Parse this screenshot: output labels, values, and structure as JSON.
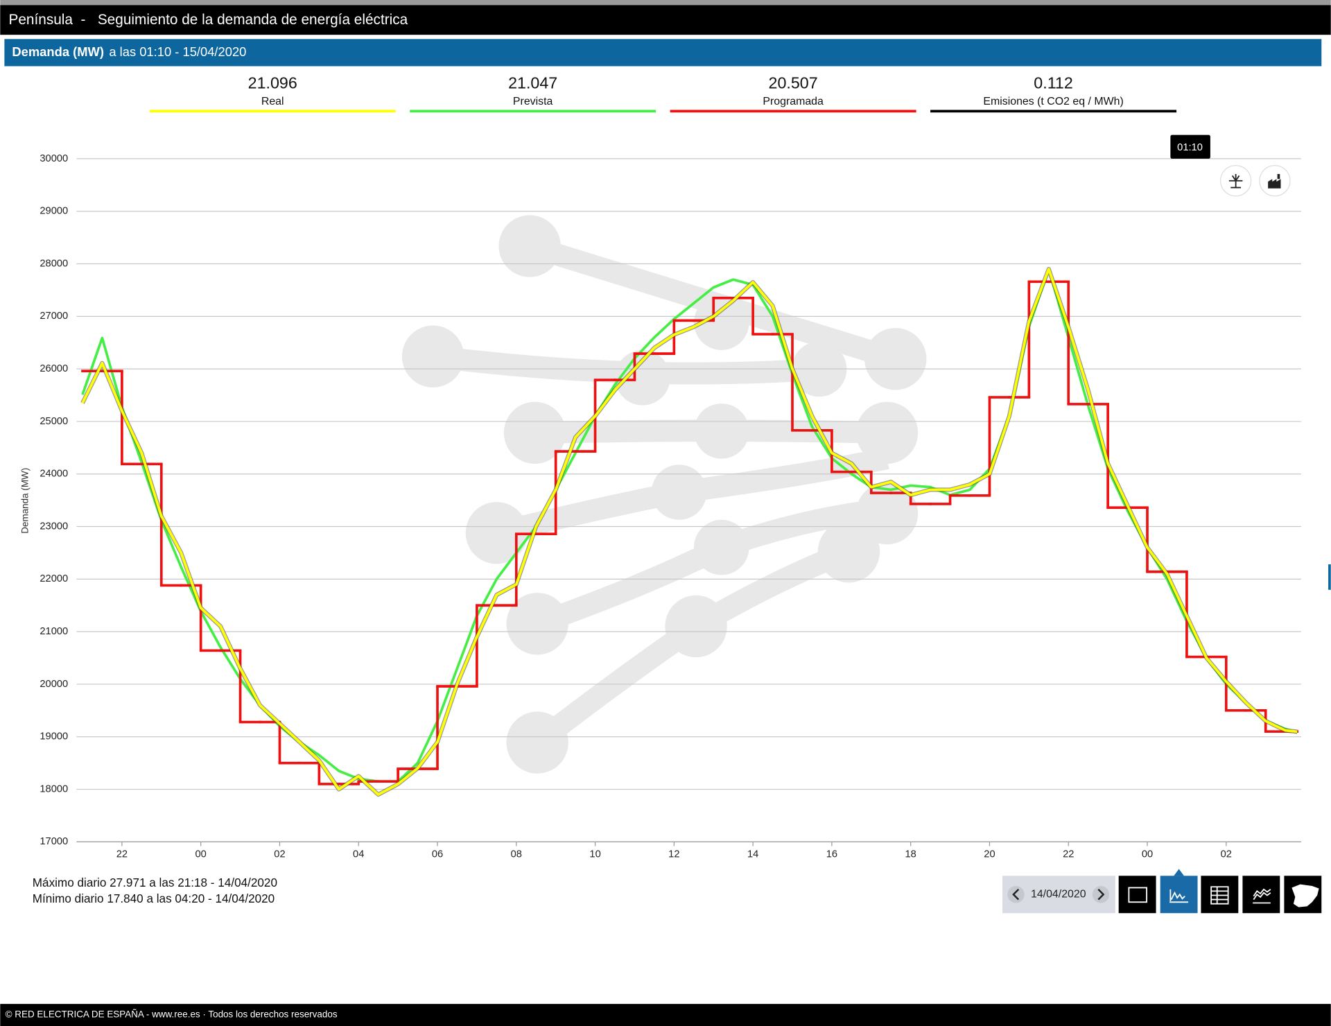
{
  "header": {
    "title": "Península  -   Seguimiento de la demanda de energía eléctrica",
    "subtitle_bold": "Demanda (MW)",
    "subtitle": "a las 01:10 - 15/04/2020"
  },
  "tooltip": "01:10",
  "emissions": {
    "value": "0.112",
    "label": "Emisiones (t CO2 eq / MWh)",
    "color": "#000000"
  },
  "stats": [
    "Máximo diario 27.971 a las 21:18 - 14/04/2020",
    "Mínimo diario 17.840 a las 04:20 - 14/04/2020"
  ],
  "nav_date": "14/04/2020",
  "footer": "© RED ELECTRICA DE ESPAÑA - www.ree.es · Todos los derechos reservados",
  "chart_data": {
    "type": "line",
    "ylabel": "Demanda (MW)",
    "xlim": [
      21,
      51.9
    ],
    "ylim": [
      17000,
      30000
    ],
    "xticks": [
      22,
      {
        "value": 24,
        "label": "00"
      },
      {
        "value": 26,
        "label": "02"
      },
      {
        "value": 28,
        "label": "04"
      },
      {
        "value": 30,
        "label": "06"
      },
      {
        "value": 32,
        "label": "08"
      },
      {
        "value": 34,
        "label": "10"
      },
      {
        "value": 36,
        "label": "12"
      },
      {
        "value": 38,
        "label": "14"
      },
      {
        "value": 40,
        "label": "16"
      },
      {
        "value": 42,
        "label": "18"
      },
      {
        "value": 44,
        "label": "20"
      },
      {
        "value": 46,
        "label": "22"
      },
      {
        "value": 48,
        "label": "00"
      },
      {
        "value": 50,
        "label": "02"
      }
    ],
    "yticks": [
      17000,
      18000,
      19000,
      20000,
      21000,
      22000,
      23000,
      24000,
      25000,
      26000,
      27000,
      28000,
      29000,
      30000
    ],
    "grid": true,
    "x": [
      21,
      21.5,
      22,
      22.5,
      23,
      23.5,
      24,
      24.5,
      25,
      25.5,
      26,
      26.5,
      27,
      27.5,
      28,
      28.5,
      29,
      29.5,
      30,
      30.5,
      31,
      31.5,
      32,
      32.5,
      33,
      33.5,
      34,
      34.5,
      35,
      35.5,
      36,
      36.5,
      37,
      37.5,
      38,
      38.5,
      39,
      39.5,
      40,
      40.5,
      41,
      41.5,
      42,
      42.5,
      43,
      43.5,
      44,
      44.5,
      45,
      45.5,
      46,
      46.5,
      47,
      47.5,
      48,
      48.5,
      49,
      49.5,
      50,
      50.5,
      51,
      51.5,
      51.8
    ],
    "series": [
      {
        "name": "Real",
        "current": "21.096",
        "color": "#ffff00",
        "values": [
          25350,
          26110,
          25200,
          24400,
          23200,
          22500,
          21450,
          21100,
          20300,
          19600,
          19250,
          18900,
          18550,
          18000,
          18250,
          17900,
          18100,
          18400,
          18900,
          20000,
          20900,
          21700,
          21900,
          23000,
          23700,
          24700,
          25100,
          25600,
          26000,
          26400,
          26650,
          26800,
          27000,
          27300,
          27650,
          27200,
          26000,
          25100,
          24400,
          24200,
          23750,
          23850,
          23600,
          23700,
          23700,
          23800,
          24000,
          25100,
          26900,
          27900,
          26800,
          25600,
          24200,
          23400,
          22600,
          22100,
          21300,
          20500,
          20050,
          19650,
          19300,
          19120,
          19096
        ]
      },
      {
        "name": "Prevista",
        "current": "21.047",
        "color": "#44ee44",
        "values": [
          25510,
          26590,
          25270,
          24220,
          23120,
          22230,
          21390,
          20700,
          20100,
          19600,
          19200,
          18900,
          18650,
          18350,
          18200,
          18150,
          18150,
          18500,
          19300,
          20300,
          21300,
          22000,
          22500,
          23000,
          23700,
          24400,
          25100,
          25700,
          26200,
          26600,
          26950,
          27250,
          27550,
          27700,
          27600,
          27000,
          25900,
          24900,
          24300,
          24000,
          23750,
          23700,
          23780,
          23750,
          23600,
          23700,
          24100,
          25100,
          26800,
          27900,
          26600,
          25300,
          24100,
          23300,
          22600,
          22000,
          21200,
          20500,
          20000,
          19650,
          19300,
          19150,
          19080
        ]
      },
      {
        "name": "Programada",
        "current": "20.507",
        "color": "#ee1111",
        "step": "after",
        "values": [
          25960,
          25960,
          24190,
          24190,
          21880,
          21880,
          20640,
          20640,
          19280,
          19280,
          18500,
          18500,
          18100,
          18100,
          18150,
          18150,
          18390,
          18390,
          19960,
          19960,
          21500,
          21500,
          22860,
          22860,
          24430,
          24430,
          25790,
          25790,
          26290,
          26290,
          26920,
          26920,
          27350,
          27350,
          26660,
          26660,
          24830,
          24830,
          24040,
          24040,
          23640,
          23640,
          23430,
          23430,
          23590,
          23590,
          25460,
          25460,
          27660,
          27660,
          25330,
          25330,
          23360,
          23360,
          22140,
          22140,
          20520,
          20520,
          19500,
          19500,
          19100,
          19100,
          19100
        ]
      }
    ]
  }
}
